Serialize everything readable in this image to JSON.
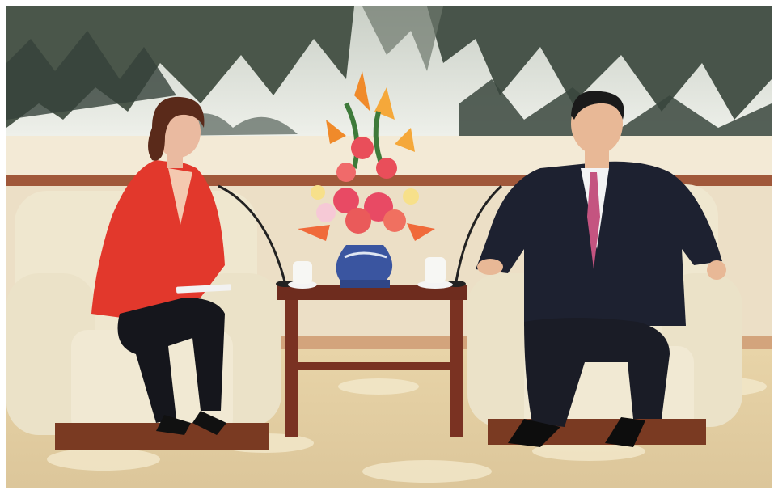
{
  "photo": {
    "subject": "two-person-meeting",
    "palette": {
      "mural_dark": "#3e4a3e",
      "mural_mist": "#dfe3dc",
      "wall": "#ecdfc6",
      "wood_rail": "#a0583a",
      "carpet": "#e3cfa4",
      "carpet_pattern": "#f3e8cc",
      "chair": "#efe7cf",
      "table_wood": "#7a3222",
      "red_jacket": "#e2382c",
      "dark_suit": "#1d2130",
      "pink_tie": "#c45480",
      "vase_blue": "#3a55a0"
    }
  }
}
